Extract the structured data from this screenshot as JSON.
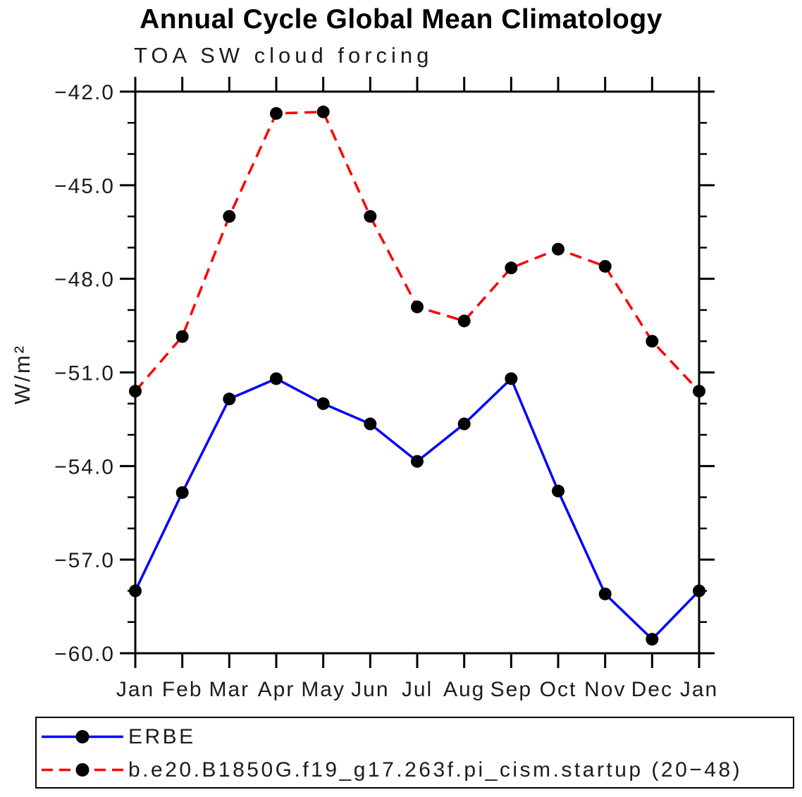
{
  "title": "Annual Cycle Global Mean Climatology",
  "subtitle": "TOA SW cloud forcing",
  "chart_data": {
    "type": "line",
    "categories": [
      "Jan",
      "Feb",
      "Mar",
      "Apr",
      "May",
      "Jun",
      "Jul",
      "Aug",
      "Sep",
      "Oct",
      "Nov",
      "Dec",
      "Jan"
    ],
    "series": [
      {
        "name": "ERBE",
        "color": "#0000ff",
        "line_style": "solid",
        "marker": "filled-circle",
        "marker_color": "#000000",
        "values": [
          -58.0,
          -54.85,
          -51.85,
          -51.2,
          -52.0,
          -52.65,
          -53.85,
          -52.65,
          -51.2,
          -54.8,
          -58.1,
          -59.55,
          -58.0
        ]
      },
      {
        "name": "b.e20.B1850G.f19_g17.263f.pi_cism.startup (20−48)",
        "color": "#ff0000",
        "line_style": "dashed",
        "marker": "filled-circle",
        "marker_color": "#000000",
        "values": [
          -51.6,
          -49.85,
          -46.0,
          -42.7,
          -42.65,
          -46.0,
          -48.9,
          -49.35,
          -47.65,
          -47.05,
          -47.6,
          -50.0,
          -51.6
        ]
      }
    ],
    "xlabel": "",
    "ylabel": "W/m²",
    "ylim": [
      -60.0,
      -42.0
    ],
    "ytick_major_interval": 3.0,
    "ytick_minor_interval": 1.0,
    "ytick_labels": [
      "−42.0",
      "−45.0",
      "−48.0",
      "−51.0",
      "−54.0",
      "−57.0",
      "−60.0"
    ],
    "grid": false,
    "legend_position": "bottom"
  }
}
